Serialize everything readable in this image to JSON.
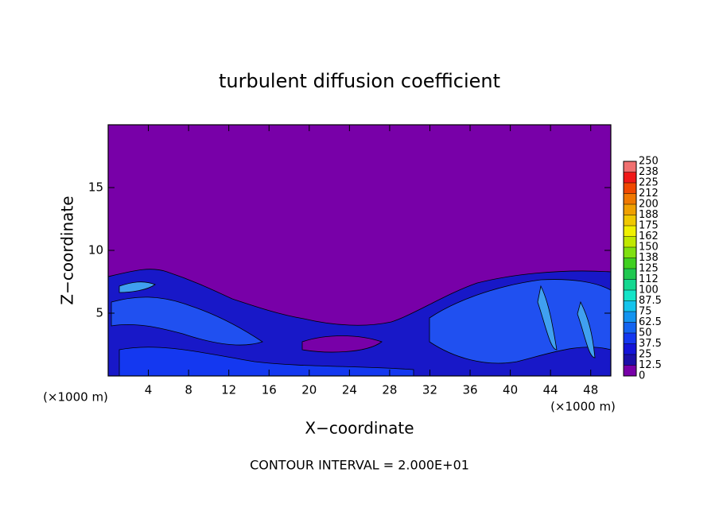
{
  "chart_data": {
    "type": "contour",
    "title": "turbulent diffusion coefficient",
    "xlabel": "X−coordinate",
    "ylabel": "Z−coordinate",
    "x_unit": "(×1000 m)",
    "annotation": "CONTOUR INTERVAL = 2.000E+01",
    "xlim": [
      0,
      50
    ],
    "xticks": [
      4,
      8,
      12,
      16,
      20,
      24,
      28,
      32,
      36,
      40,
      44,
      48
    ],
    "ylim": [
      0,
      20
    ],
    "yticks": [
      5,
      10,
      15
    ],
    "colorbar": {
      "levels": [
        0,
        12.5,
        25,
        37.5,
        50,
        62.5,
        75,
        87.5,
        100,
        {
          "value": 112.5,
          "label": "112"
        },
        125,
        {
          "value": 137.5,
          "label": "138"
        },
        150,
        {
          "value": 162.5,
          "label": "162"
        },
        175,
        {
          "value": 187.5,
          "label": "188"
        },
        200,
        {
          "value": 212.5,
          "label": "212"
        },
        225,
        {
          "value": 237.5,
          "label": "238"
        },
        250
      ],
      "colors": [
        "#7800a8",
        "#1c10a8",
        "#1414d8",
        "#1438f0",
        "#1464f0",
        "#1494f0",
        "#14c4ec",
        "#14e4c8",
        "#14d890",
        "#20c850",
        "#40d020",
        "#80e010",
        "#c0e800",
        "#f0f000",
        "#f0c800",
        "#f0a000",
        "#f07800",
        "#f04800",
        "#f01818",
        "#f07070"
      ]
    }
  }
}
